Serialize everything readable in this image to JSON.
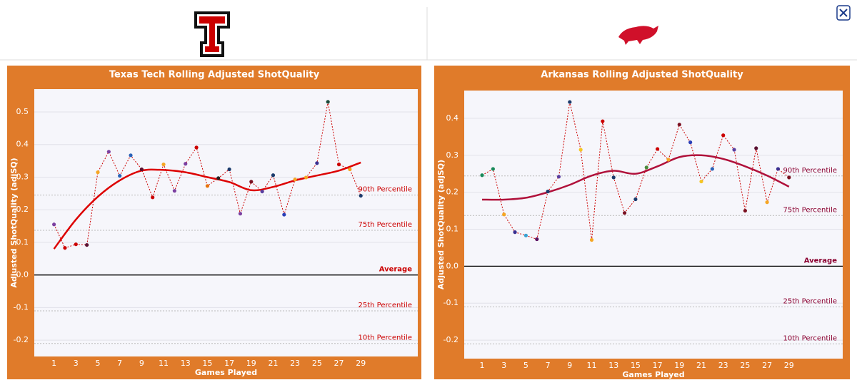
{
  "chart_data": [
    {
      "type": "line",
      "title": "Texas Tech Rolling Adjusted ShotQuality",
      "xlabel": "Games Played",
      "ylabel": "Adjusted ShotQuality (adjSQ)",
      "x": [
        1,
        2,
        3,
        4,
        5,
        6,
        7,
        8,
        9,
        10,
        11,
        12,
        13,
        14,
        15,
        16,
        17,
        18,
        19,
        20,
        21,
        22,
        23,
        24,
        25,
        26,
        27,
        28,
        29
      ],
      "values": [
        0.155,
        0.083,
        0.094,
        0.092,
        0.315,
        0.378,
        0.304,
        0.367,
        0.324,
        0.238,
        0.339,
        0.258,
        0.341,
        0.391,
        0.273,
        0.297,
        0.324,
        0.188,
        0.286,
        0.256,
        0.306,
        0.185,
        0.293,
        0.299,
        0.343,
        0.531,
        0.339,
        0.324,
        0.243
      ],
      "point_colors": [
        "#7b3fa0",
        "#cc0000",
        "#cc0000",
        "#5a1030",
        "#f5a623",
        "#7b3fa0",
        "#2a62b8",
        "#2a62b8",
        "#5a1030",
        "#cc0000",
        "#f5a623",
        "#7b3fa0",
        "#7b3fa0",
        "#cc0000",
        "#e8740c",
        "#222222",
        "#1a3a6b",
        "#7b3fa0",
        "#7a1020",
        "#5a3fa0",
        "#1a3a6b",
        "#2a3fb8",
        "#f5a623",
        "#f5a623",
        "#3a2f90",
        "#1a4a3a",
        "#cc0000",
        "#f5a623",
        "#1a3a6b"
      ],
      "line_color": "#cc0000",
      "trend_x": [
        1,
        3,
        5,
        7,
        9,
        11,
        13,
        15,
        17,
        19,
        21,
        23,
        25,
        27,
        29
      ],
      "trend": [
        0.08,
        0.17,
        0.24,
        0.29,
        0.32,
        0.322,
        0.315,
        0.3,
        0.285,
        0.26,
        0.27,
        0.29,
        0.305,
        0.32,
        0.345
      ],
      "trend_color": "#dd0000",
      "label_color": "#cc0000",
      "xlim": [
        -0.8,
        34.2
      ],
      "ylim": [
        -0.25,
        0.57
      ],
      "xticks": [
        1,
        3,
        5,
        7,
        9,
        11,
        13,
        15,
        17,
        19,
        21,
        23,
        25,
        27,
        29
      ],
      "yticks": [
        -0.2,
        -0.1,
        {
          "value": 0,
          "label": "0.0"
        },
        0.1,
        0.2,
        0.3,
        0.4,
        0.5
      ],
      "reference_lines": [
        {
          "label": "90th Percentile",
          "value": 0.245
        },
        {
          "label": "75th Percentile",
          "value": 0.137
        },
        {
          "label": "Average",
          "value": 0,
          "solid": true
        },
        {
          "label": "25th Percentile",
          "value": -0.11
        },
        {
          "label": "10th Percentile",
          "value": -0.21
        }
      ]
    },
    {
      "type": "line",
      "title": "Arkansas Rolling Adjusted ShotQuality",
      "xlabel": "Games Played",
      "ylabel": "Adjusted ShotQuality (adjSQ)",
      "x": [
        1,
        2,
        3,
        4,
        5,
        6,
        7,
        8,
        9,
        10,
        11,
        12,
        13,
        14,
        15,
        16,
        17,
        18,
        19,
        20,
        21,
        22,
        23,
        24,
        25,
        26,
        27,
        28,
        29
      ],
      "values": [
        0.246,
        0.263,
        0.14,
        0.092,
        0.083,
        0.073,
        0.202,
        0.242,
        0.444,
        0.315,
        0.071,
        0.392,
        0.24,
        0.144,
        0.181,
        0.267,
        0.317,
        0.288,
        0.383,
        0.335,
        0.229,
        0.263,
        0.354,
        0.315,
        0.15,
        0.319,
        0.173,
        0.263,
        0.24
      ],
      "point_colors": [
        "#1a8a5a",
        "#1a8a5a",
        "#f5a623",
        "#3a2f90",
        "#3aa0d0",
        "#5a1060",
        "#1a3a6b",
        "#5a3fa0",
        "#1a3a6b",
        "#f5c623",
        "#f5a623",
        "#cc0000",
        "#1a3a6b",
        "#7a1020",
        "#1a3a6b",
        "#4a8a3a",
        "#cc0000",
        "#f5a623",
        "#7a1020",
        "#2a3fb8",
        "#f5c623",
        "#2a62b8",
        "#cc0000",
        "#5a3fa0",
        "#7a1020",
        "#5a1030",
        "#f5a623",
        "#3a2f90",
        "#7a1020"
      ],
      "line_color": "#cc0000",
      "trend_x": [
        1,
        3,
        5,
        7,
        9,
        11,
        13,
        15,
        17,
        19,
        21,
        23,
        25,
        27,
        29
      ],
      "trend": [
        0.18,
        0.18,
        0.185,
        0.2,
        0.22,
        0.245,
        0.258,
        0.25,
        0.27,
        0.295,
        0.3,
        0.29,
        0.27,
        0.245,
        0.215
      ],
      "trend_color": "#b0103a",
      "label_color": "#8b0030",
      "xlim": [
        -0.63,
        33.9
      ],
      "ylim": [
        -0.25,
        0.475
      ],
      "xticks": [
        1,
        3,
        5,
        7,
        9,
        11,
        13,
        15,
        17,
        19,
        21,
        23,
        25,
        27,
        29
      ],
      "yticks": [
        -0.2,
        -0.1,
        {
          "value": 0,
          "label": "0.0"
        },
        0.1,
        0.2,
        0.3,
        0.4
      ],
      "reference_lines": [
        {
          "label": "90th Percentile",
          "value": 0.244
        },
        {
          "label": "75th Percentile",
          "value": 0.137
        },
        {
          "label": "Average",
          "value": 0,
          "solid": true
        },
        {
          "label": "25th Percentile",
          "value": -0.11
        },
        {
          "label": "10th Percentile",
          "value": -0.21
        }
      ]
    }
  ]
}
